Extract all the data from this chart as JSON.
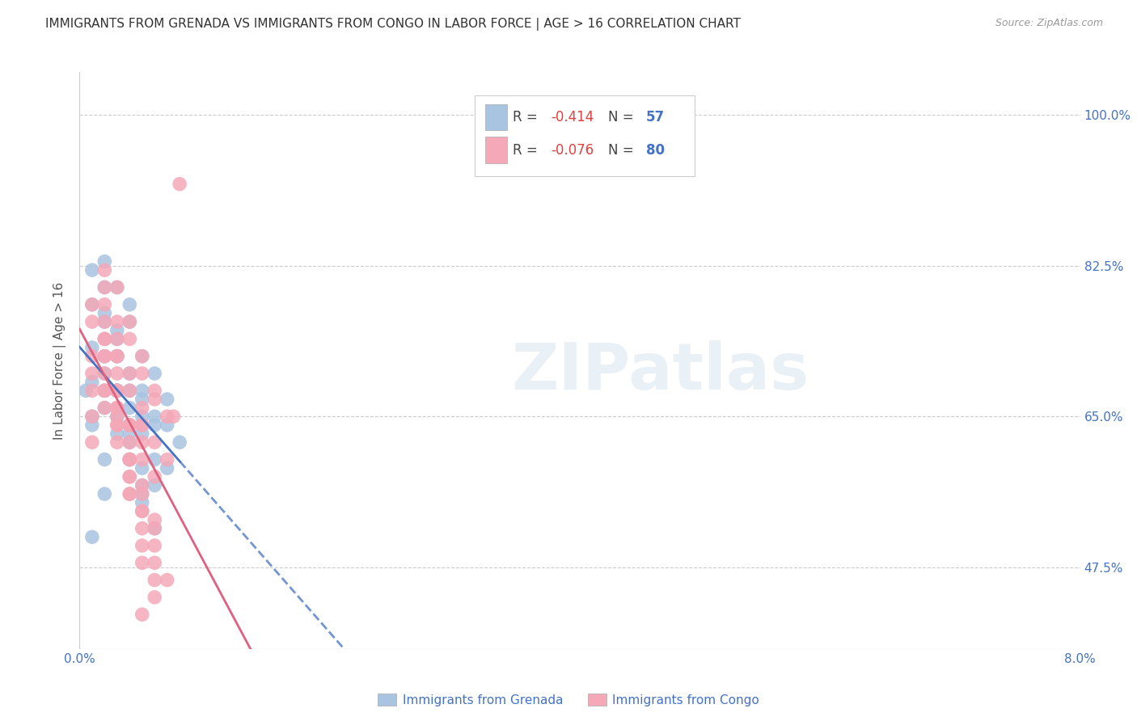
{
  "title": "IMMIGRANTS FROM GRENADA VS IMMIGRANTS FROM CONGO IN LABOR FORCE | AGE > 16 CORRELATION CHART",
  "source": "Source: ZipAtlas.com",
  "ylabel": "In Labor Force | Age > 16",
  "ytick_values": [
    1.0,
    0.825,
    0.65,
    0.475
  ],
  "xmin": 0.0,
  "xmax": 0.08,
  "ymin": 0.38,
  "ymax": 1.05,
  "grenada_color": "#a8c4e0",
  "congo_color": "#f4a8b8",
  "grenada_line_color": "#4472c4",
  "congo_line_color": "#e06080",
  "grenada_R": -0.414,
  "grenada_N": 57,
  "congo_R": -0.076,
  "congo_N": 80,
  "watermark": "ZIPatlas",
  "legend_grenada": "Immigrants from Grenada",
  "legend_congo": "Immigrants from Congo",
  "grenada_points_x": [
    0.001,
    0.001,
    0.001,
    0.002,
    0.002,
    0.002,
    0.002,
    0.003,
    0.003,
    0.003,
    0.003,
    0.004,
    0.004,
    0.004,
    0.005,
    0.005,
    0.005,
    0.006,
    0.006,
    0.007,
    0.007,
    0.008,
    0.001,
    0.001,
    0.002,
    0.002,
    0.002,
    0.003,
    0.003,
    0.004,
    0.004,
    0.005,
    0.005,
    0.006,
    0.006,
    0.007,
    0.002,
    0.003,
    0.004,
    0.005,
    0.001,
    0.002,
    0.003,
    0.004,
    0.005,
    0.006,
    0.002,
    0.003,
    0.004,
    0.005,
    0.006,
    0.003,
    0.004,
    0.005,
    0.0005,
    0.001,
    0.002
  ],
  "grenada_points_y": [
    0.69,
    0.73,
    0.78,
    0.76,
    0.8,
    0.74,
    0.68,
    0.75,
    0.72,
    0.68,
    0.65,
    0.78,
    0.7,
    0.66,
    0.68,
    0.63,
    0.57,
    0.65,
    0.6,
    0.64,
    0.59,
    0.62,
    0.82,
    0.65,
    0.83,
    0.77,
    0.72,
    0.8,
    0.74,
    0.76,
    0.64,
    0.72,
    0.67,
    0.7,
    0.64,
    0.67,
    0.66,
    0.63,
    0.62,
    0.65,
    0.51,
    0.56,
    0.68,
    0.63,
    0.59,
    0.57,
    0.7,
    0.66,
    0.6,
    0.55,
    0.52,
    0.72,
    0.68,
    0.56,
    0.68,
    0.64,
    0.6
  ],
  "congo_points_x": [
    0.001,
    0.001,
    0.001,
    0.002,
    0.002,
    0.002,
    0.002,
    0.003,
    0.003,
    0.003,
    0.003,
    0.004,
    0.004,
    0.004,
    0.005,
    0.005,
    0.006,
    0.006,
    0.007,
    0.007,
    0.008,
    0.002,
    0.002,
    0.003,
    0.003,
    0.004,
    0.004,
    0.005,
    0.005,
    0.006,
    0.001,
    0.001,
    0.002,
    0.002,
    0.003,
    0.003,
    0.004,
    0.004,
    0.005,
    0.005,
    0.006,
    0.002,
    0.003,
    0.004,
    0.005,
    0.006,
    0.003,
    0.004,
    0.005,
    0.006,
    0.002,
    0.003,
    0.004,
    0.005,
    0.001,
    0.002,
    0.003,
    0.004,
    0.005,
    0.006,
    0.002,
    0.003,
    0.004,
    0.005,
    0.001,
    0.003,
    0.004,
    0.005,
    0.006,
    0.002,
    0.003,
    0.004,
    0.005,
    0.006,
    0.004,
    0.005,
    0.006,
    0.007,
    0.005,
    0.0075
  ],
  "congo_points_y": [
    0.72,
    0.76,
    0.68,
    0.78,
    0.74,
    0.8,
    0.68,
    0.76,
    0.72,
    0.68,
    0.65,
    0.74,
    0.68,
    0.64,
    0.7,
    0.64,
    0.67,
    0.62,
    0.65,
    0.6,
    0.92,
    0.82,
    0.76,
    0.8,
    0.72,
    0.76,
    0.7,
    0.72,
    0.66,
    0.68,
    0.78,
    0.65,
    0.72,
    0.66,
    0.74,
    0.68,
    0.64,
    0.6,
    0.62,
    0.57,
    0.52,
    0.7,
    0.64,
    0.6,
    0.56,
    0.53,
    0.62,
    0.56,
    0.5,
    0.46,
    0.68,
    0.66,
    0.58,
    0.54,
    0.62,
    0.74,
    0.7,
    0.6,
    0.64,
    0.58,
    0.72,
    0.68,
    0.64,
    0.6,
    0.7,
    0.66,
    0.62,
    0.48,
    0.44,
    0.68,
    0.64,
    0.58,
    0.54,
    0.5,
    0.56,
    0.52,
    0.48,
    0.46,
    0.42,
    0.65
  ]
}
